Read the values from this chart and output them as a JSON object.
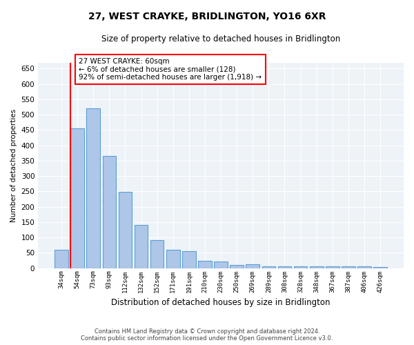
{
  "title": "27, WEST CRAYKE, BRIDLINGTON, YO16 6XR",
  "subtitle": "Size of property relative to detached houses in Bridlington",
  "xlabel": "Distribution of detached houses by size in Bridlington",
  "ylabel": "Number of detached properties",
  "categories": [
    "34sqm",
    "54sqm",
    "73sqm",
    "93sqm",
    "112sqm",
    "132sqm",
    "152sqm",
    "171sqm",
    "191sqm",
    "210sqm",
    "230sqm",
    "250sqm",
    "269sqm",
    "289sqm",
    "308sqm",
    "328sqm",
    "348sqm",
    "367sqm",
    "387sqm",
    "406sqm",
    "426sqm"
  ],
  "values": [
    60,
    455,
    520,
    365,
    248,
    140,
    92,
    60,
    55,
    25,
    22,
    10,
    12,
    7,
    6,
    5,
    5,
    5,
    5,
    5,
    4
  ],
  "bar_color": "#aec6e8",
  "bar_edge_color": "#5a9fd4",
  "red_line_x": 0.575,
  "annotation_text": "27 WEST CRAYKE: 60sqm\n← 6% of detached houses are smaller (128)\n92% of semi-detached houses are larger (1,918) →",
  "annotation_box_color": "white",
  "annotation_box_edge_color": "red",
  "red_line_color": "red",
  "ylim": [
    0,
    670
  ],
  "yticks": [
    0,
    50,
    100,
    150,
    200,
    250,
    300,
    350,
    400,
    450,
    500,
    550,
    600,
    650
  ],
  "background_color": "#eef3f8",
  "grid_color": "white",
  "footer_line1": "Contains HM Land Registry data © Crown copyright and database right 2024.",
  "footer_line2": "Contains public sector information licensed under the Open Government Licence v3.0."
}
